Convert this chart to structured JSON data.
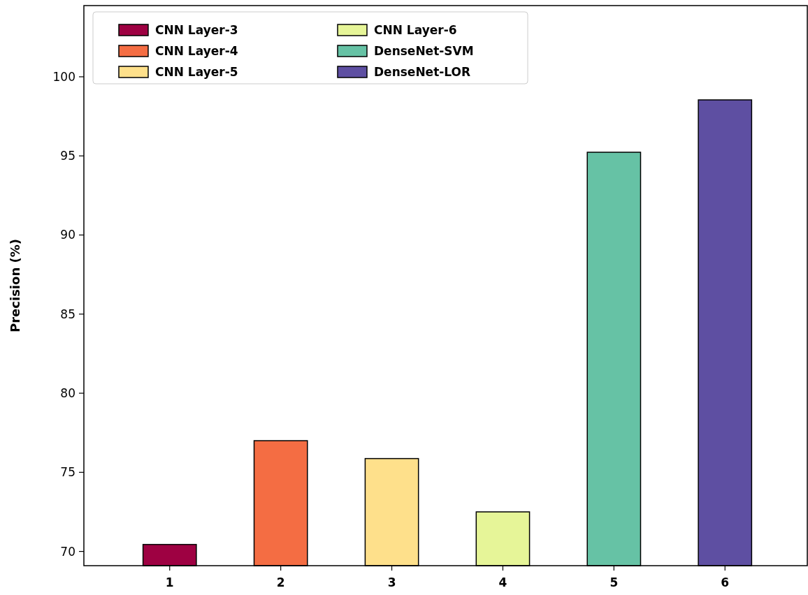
{
  "chart_data": {
    "type": "bar",
    "ylabel": "Precision (%)",
    "categories": [
      "1",
      "2",
      "3",
      "4",
      "5",
      "6"
    ],
    "series": [
      {
        "name": "CNN Layer-3",
        "color": "#9e0142",
        "values": [
          70.44,
          null,
          null,
          null,
          null,
          null
        ]
      },
      {
        "name": "CNN Layer-4",
        "color": "#f46d43",
        "values": [
          null,
          77.0,
          null,
          null,
          null,
          null
        ]
      },
      {
        "name": "CNN Layer-5",
        "color": "#fee08b",
        "values": [
          null,
          null,
          75.87,
          null,
          null,
          null
        ]
      },
      {
        "name": "CNN Layer-6",
        "color": "#e6f598",
        "values": [
          null,
          null,
          null,
          72.5,
          null,
          null
        ]
      },
      {
        "name": "DenseNet-SVM",
        "color": "#66c2a5",
        "values": [
          null,
          null,
          null,
          null,
          95.23,
          null
        ]
      },
      {
        "name": "DenseNet-LOR",
        "color": "#5e4fa2",
        "values": [
          null,
          null,
          null,
          null,
          null,
          98.54
        ]
      }
    ],
    "ylim": [
      69.1,
      104.5
    ],
    "yticks": [
      70,
      75,
      80,
      85,
      90,
      95,
      100
    ],
    "grid": false,
    "legend": "top left"
  }
}
